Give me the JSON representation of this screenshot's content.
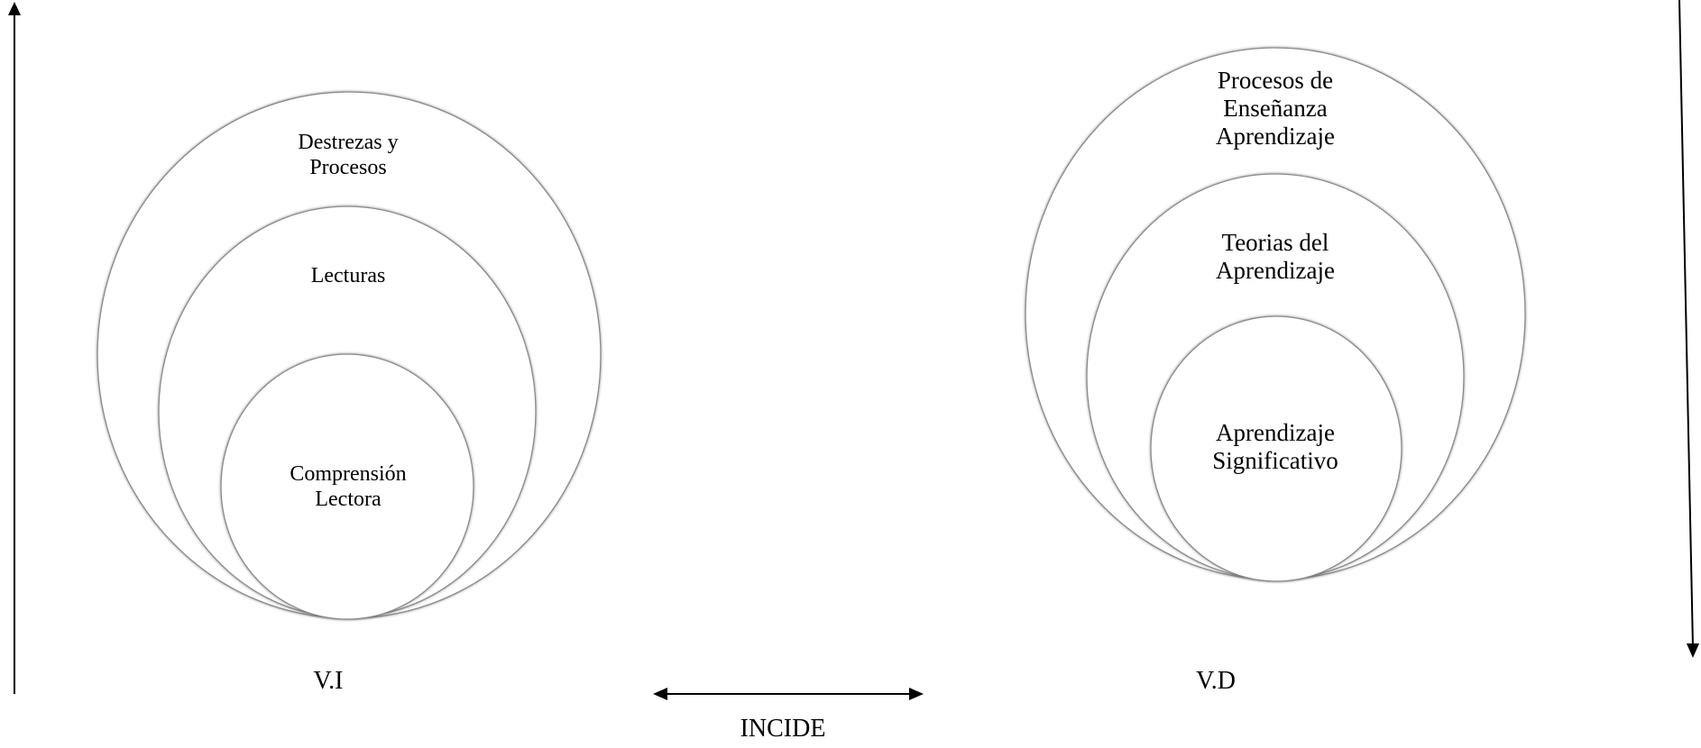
{
  "left_group": {
    "outer_label": "Destrezas y\nProcesos",
    "middle_label": "Lecturas",
    "inner_label": "Comprensión\nLectora",
    "variable_label": "V.I"
  },
  "right_group": {
    "outer_label": "Procesos de\nEnseñanza\nAprendizaje",
    "middle_label": "Teorias del\nAprendizaje",
    "inner_label": "Aprendizaje\nSignificativo",
    "variable_label": "V.D"
  },
  "relation": {
    "label": "INCIDE"
  },
  "colors": {
    "circle_stroke": "#8a8a8a",
    "line": "#000000",
    "background": "#ffffff"
  }
}
